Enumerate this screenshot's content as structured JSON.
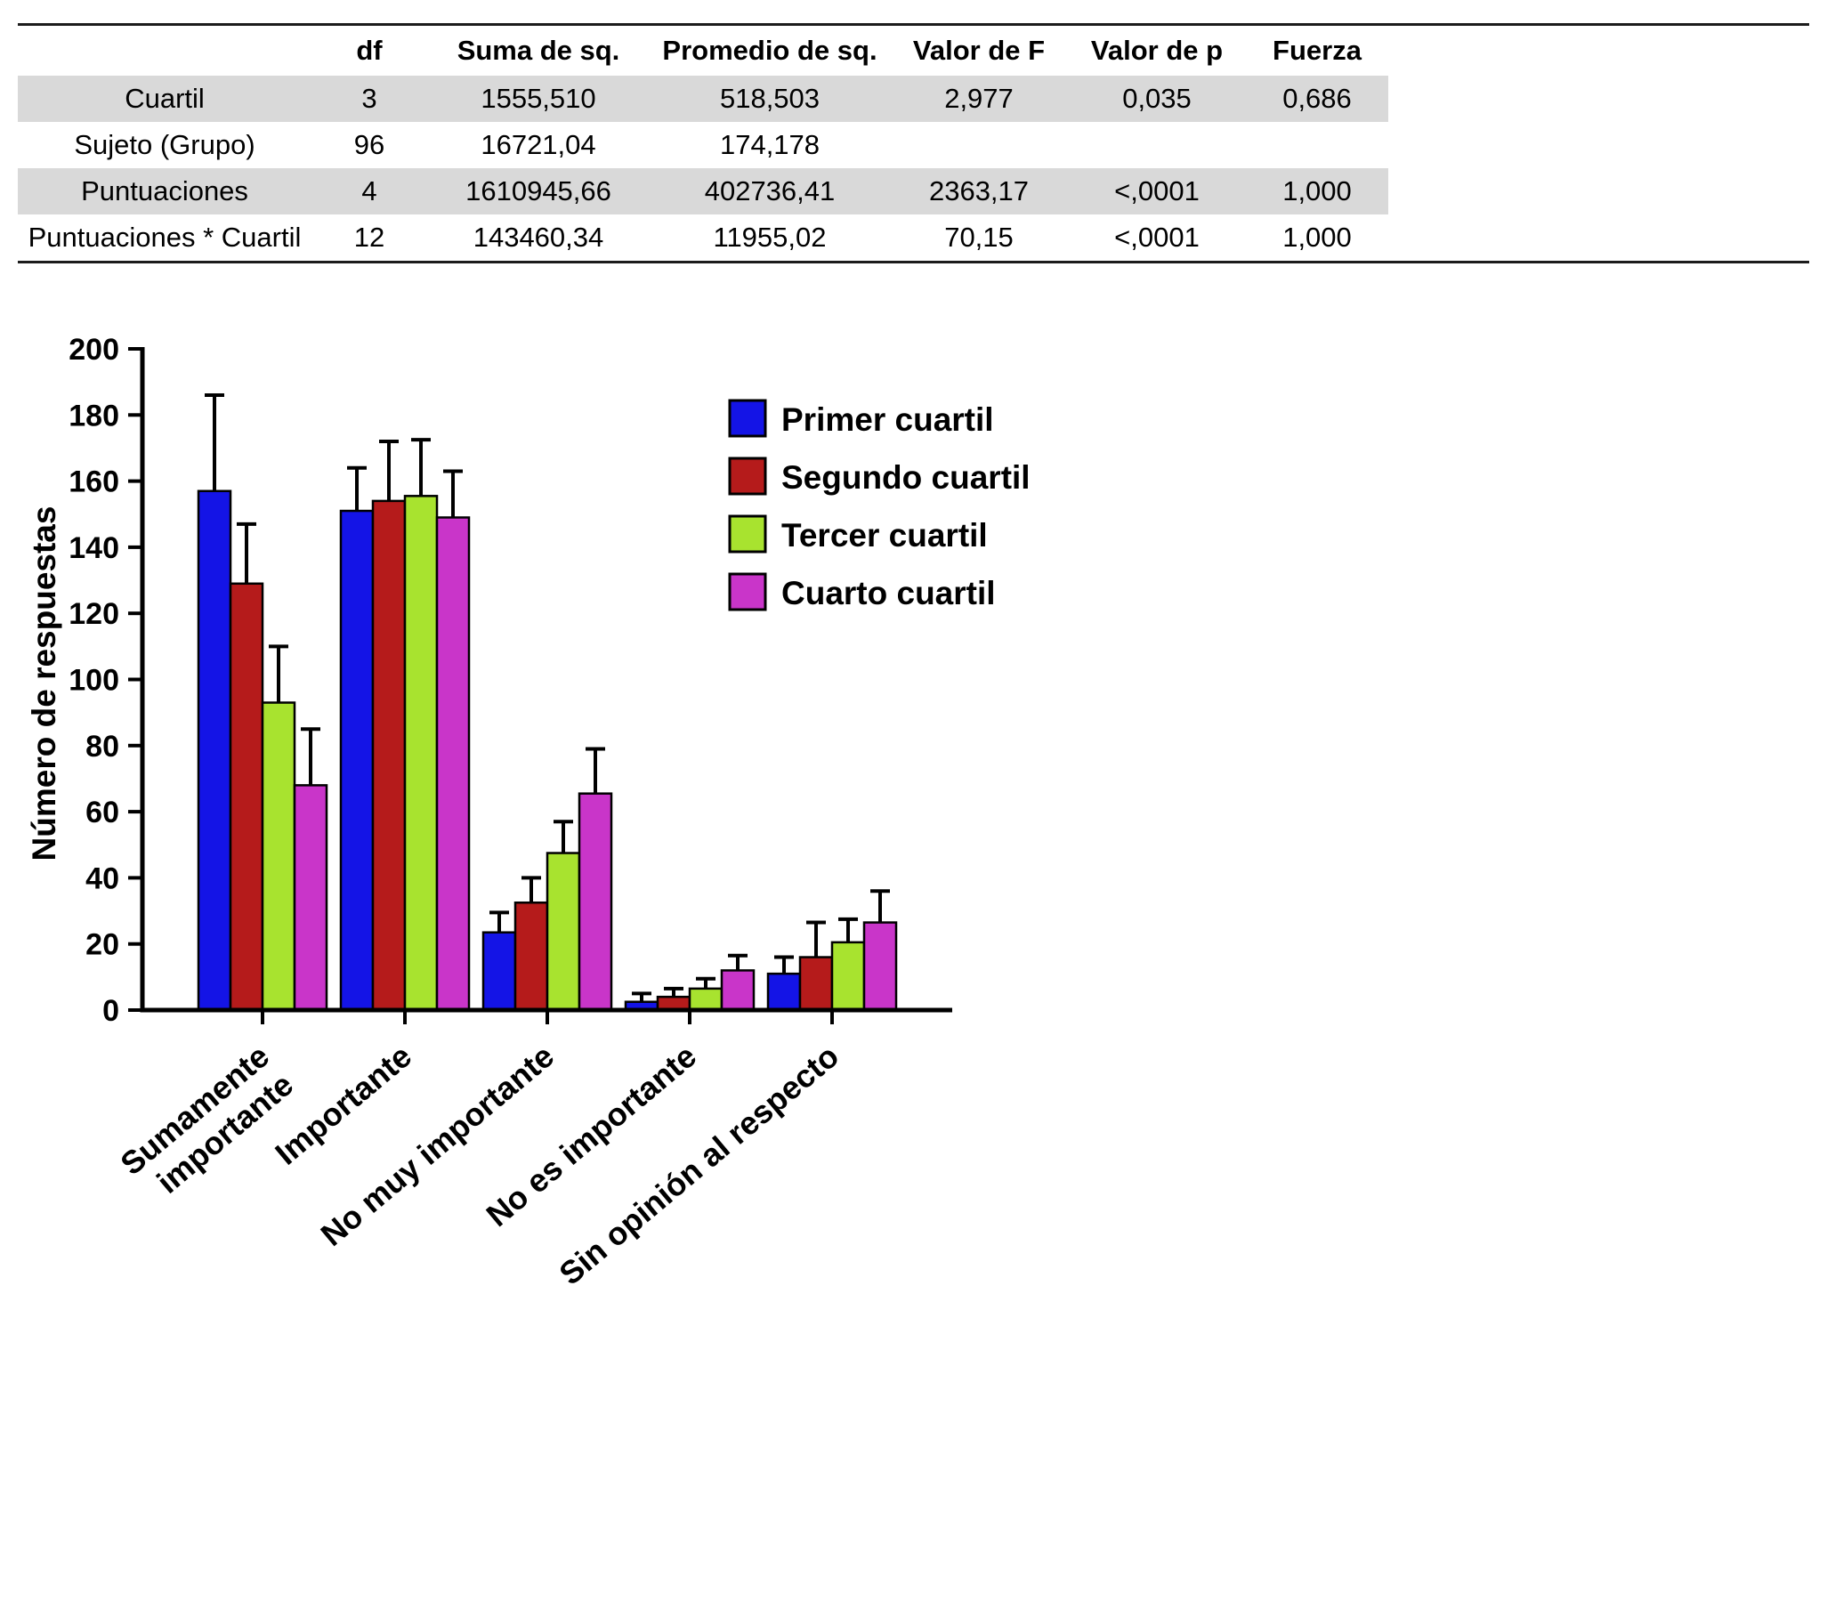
{
  "table": {
    "headers": [
      "",
      "df",
      "Suma de sq.",
      "Promedio de sq.",
      "Valor de F",
      "Valor de p",
      "Fuerza"
    ],
    "rows": [
      {
        "label": "Cuartil",
        "values": [
          "3",
          "1555,510",
          "518,503",
          "2,977",
          "0,035",
          "0,686"
        ],
        "shaded": true
      },
      {
        "label": "Sujeto (Grupo)",
        "values": [
          "96",
          "16721,04",
          "174,178",
          "",
          "",
          ""
        ],
        "shaded": false
      },
      {
        "label": "Puntuaciones",
        "values": [
          "4",
          "1610945,66",
          "402736,41",
          "2363,17",
          "<,0001",
          "1,000"
        ],
        "shaded": true
      },
      {
        "label": "Puntuaciones * Cuartil",
        "values": [
          "12",
          "143460,34",
          "11955,02",
          "70,15",
          "<,0001",
          "1,000"
        ],
        "shaded": false
      }
    ]
  },
  "chart_data": {
    "type": "bar",
    "title": "",
    "xlabel": "",
    "ylabel": "Número de respuestas",
    "ylim": [
      0,
      200
    ],
    "yticks": [
      0,
      20,
      40,
      60,
      80,
      100,
      120,
      140,
      160,
      180,
      200
    ],
    "grid": false,
    "legend_position": "upper-right-inside",
    "categories": [
      "Sumamente\nimportante",
      "Importante",
      "No muy importante",
      "No es importante",
      "Sin opinión al respecto"
    ],
    "series": [
      {
        "name": "Primer cuartil",
        "color": "#1414E6",
        "values": [
          157,
          151,
          23.5,
          2.5,
          11
        ],
        "errors": [
          29,
          13,
          6,
          2.5,
          5
        ]
      },
      {
        "name": "Segundo cuartil",
        "color": "#B51B1B",
        "values": [
          129,
          154,
          32.5,
          4,
          16
        ],
        "errors": [
          18,
          18,
          7.5,
          2.5,
          10.5
        ]
      },
      {
        "name": "Tercer cuartil",
        "color": "#A8E32F",
        "values": [
          93,
          155.5,
          47.5,
          6.5,
          20.5
        ],
        "errors": [
          17,
          17,
          9.5,
          3,
          7
        ]
      },
      {
        "name": "Cuarto cuartil",
        "color": "#C935C9",
        "values": [
          68,
          149,
          65.5,
          12,
          26.5
        ],
        "errors": [
          17,
          14,
          13.5,
          4.5,
          9.5
        ]
      }
    ],
    "error_bar_color": "#000000",
    "bar_border_color": "#000000"
  }
}
